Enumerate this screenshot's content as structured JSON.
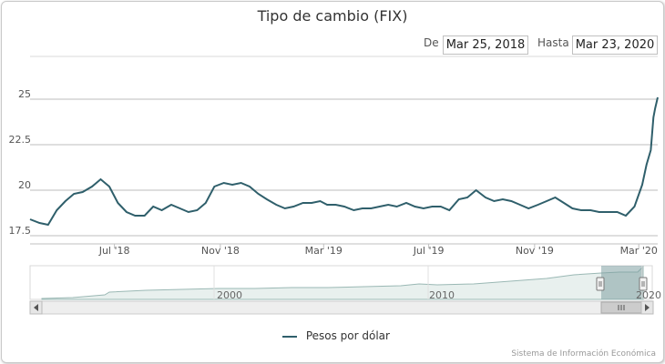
{
  "chart_data": {
    "type": "line",
    "title": "Tipo de cambio (FIX)",
    "range_from_label": "De",
    "range_from_value": "Mar 25, 2018",
    "range_to_label": "Hasta",
    "range_to_value": "Mar 23, 2020",
    "y_ticks": [
      "17.5",
      "20",
      "22.5",
      "25"
    ],
    "ylim": [
      17.5,
      25.2
    ],
    "x_ticks": [
      "Jul '18",
      "Nov '18",
      "Mar '19",
      "Jul '19",
      "Nov '19",
      "Mar '20"
    ],
    "grid": true,
    "series": [
      {
        "name": "Pesos por dólar",
        "color": "#2f5f6b",
        "x": [
          "2018-03-25",
          "2018-04-05",
          "2018-04-15",
          "2018-04-25",
          "2018-05-05",
          "2018-05-15",
          "2018-05-25",
          "2018-06-05",
          "2018-06-15",
          "2018-06-25",
          "2018-07-05",
          "2018-07-15",
          "2018-07-25",
          "2018-08-05",
          "2018-08-15",
          "2018-08-25",
          "2018-09-05",
          "2018-09-15",
          "2018-09-25",
          "2018-10-05",
          "2018-10-15",
          "2018-10-25",
          "2018-11-05",
          "2018-11-15",
          "2018-11-25",
          "2018-12-05",
          "2018-12-15",
          "2018-12-25",
          "2019-01-05",
          "2019-01-15",
          "2019-01-25",
          "2019-02-05",
          "2019-02-15",
          "2019-02-25",
          "2019-03-05",
          "2019-03-15",
          "2019-03-25",
          "2019-04-05",
          "2019-04-15",
          "2019-04-25",
          "2019-05-05",
          "2019-05-15",
          "2019-05-25",
          "2019-06-05",
          "2019-06-15",
          "2019-06-25",
          "2019-07-05",
          "2019-07-15",
          "2019-07-25",
          "2019-08-05",
          "2019-08-15",
          "2019-08-25",
          "2019-09-05",
          "2019-09-15",
          "2019-09-25",
          "2019-10-05",
          "2019-10-15",
          "2019-10-25",
          "2019-11-05",
          "2019-11-15",
          "2019-11-25",
          "2019-12-05",
          "2019-12-15",
          "2019-12-25",
          "2020-01-05",
          "2020-01-15",
          "2020-01-25",
          "2020-02-05",
          "2020-02-15",
          "2020-02-25",
          "2020-03-05",
          "2020-03-10",
          "2020-03-15",
          "2020-03-18",
          "2020-03-20",
          "2020-03-23"
        ],
        "values": [
          18.4,
          18.2,
          18.1,
          18.9,
          19.4,
          19.8,
          19.9,
          20.2,
          20.6,
          20.2,
          19.3,
          18.8,
          18.6,
          18.6,
          19.1,
          18.9,
          19.2,
          19.0,
          18.8,
          18.9,
          19.3,
          20.2,
          20.4,
          20.3,
          20.4,
          20.2,
          19.8,
          19.5,
          19.2,
          19.0,
          19.1,
          19.3,
          19.3,
          19.4,
          19.2,
          19.2,
          19.1,
          18.9,
          19.0,
          19.0,
          19.1,
          19.2,
          19.1,
          19.3,
          19.1,
          19.0,
          19.1,
          19.1,
          18.9,
          19.5,
          19.6,
          20.0,
          19.6,
          19.4,
          19.5,
          19.4,
          19.2,
          19.0,
          19.2,
          19.4,
          19.6,
          19.3,
          19.0,
          18.9,
          18.9,
          18.8,
          18.8,
          18.8,
          18.6,
          19.1,
          20.3,
          21.4,
          22.2,
          24.0,
          24.5,
          25.1
        ]
      }
    ]
  },
  "navigator": {
    "x_ticks": [
      "2000",
      "2010",
      "2020"
    ]
  },
  "credits": "Sistema de Información Económica"
}
